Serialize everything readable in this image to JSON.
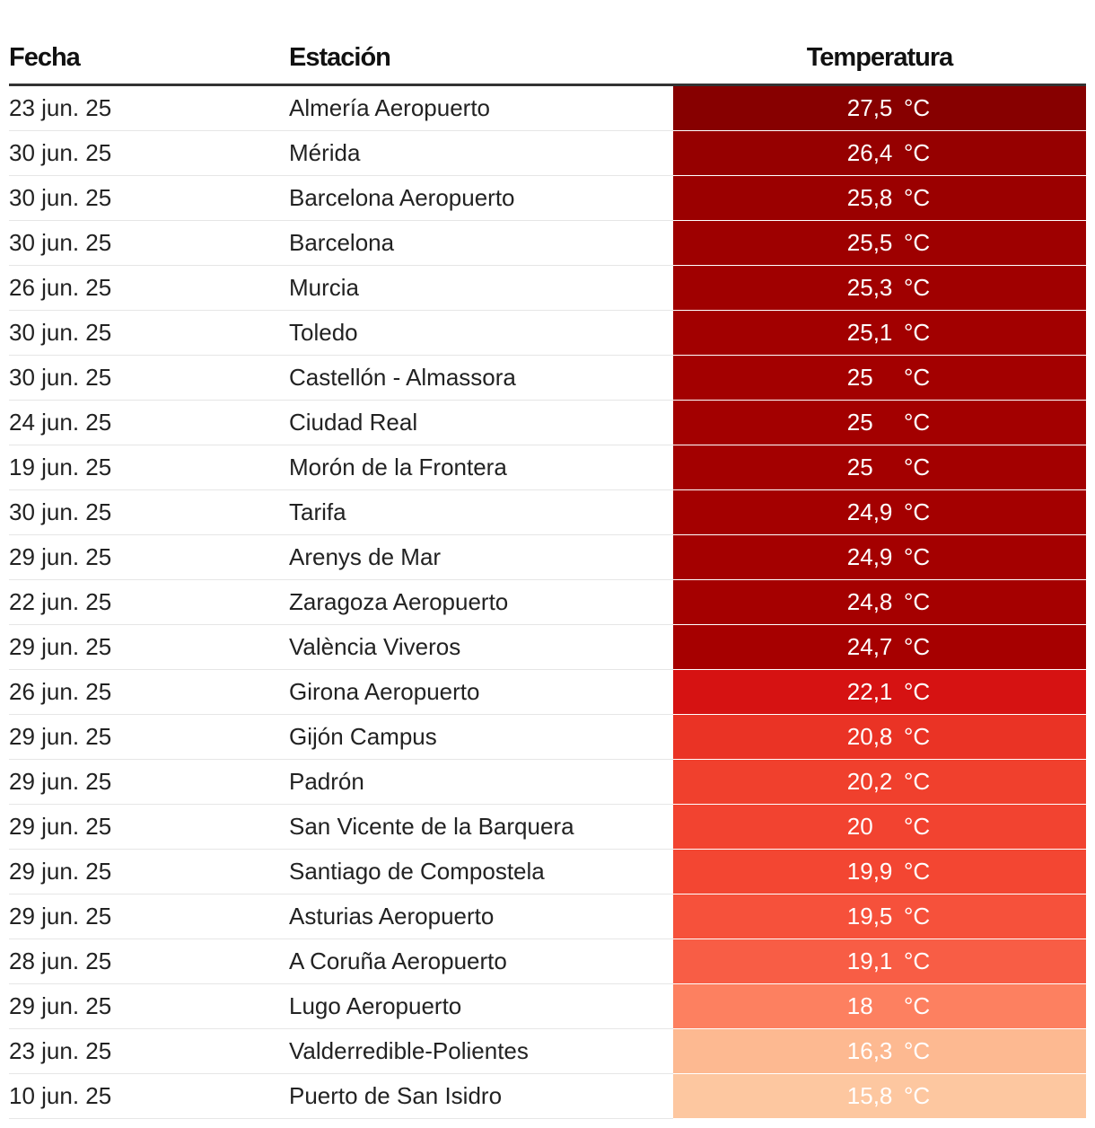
{
  "chart_data": {
    "type": "table",
    "columns": [
      "Fecha",
      "Estación",
      "Temperatura"
    ],
    "unit": "°C",
    "rows": [
      {
        "fecha": "23 jun. 25",
        "estacion": "Almería Aeropuerto",
        "temp": "27,5",
        "value": 27.5,
        "color": "#870000"
      },
      {
        "fecha": "30 jun. 25",
        "estacion": "Mérida",
        "temp": "26,4",
        "value": 26.4,
        "color": "#960000"
      },
      {
        "fecha": "30 jun. 25",
        "estacion": "Barcelona Aeropuerto",
        "temp": "25,8",
        "value": 25.8,
        "color": "#9b0000"
      },
      {
        "fecha": "30 jun. 25",
        "estacion": "Barcelona",
        "temp": "25,5",
        "value": 25.5,
        "color": "#9e0000"
      },
      {
        "fecha": "26 jun. 25",
        "estacion": "Murcia",
        "temp": "25,3",
        "value": 25.3,
        "color": "#a00000"
      },
      {
        "fecha": "30 jun. 25",
        "estacion": "Toledo",
        "temp": "25,1",
        "value": 25.1,
        "color": "#a20000"
      },
      {
        "fecha": "30 jun. 25",
        "estacion": "Castellón - Almassora",
        "temp": "25",
        "value": 25.0,
        "color": "#a30000"
      },
      {
        "fecha": "24 jun. 25",
        "estacion": "Ciudad Real",
        "temp": "25",
        "value": 25.0,
        "color": "#a30000"
      },
      {
        "fecha": "19 jun. 25",
        "estacion": "Morón de la Frontera",
        "temp": "25",
        "value": 25.0,
        "color": "#a30000"
      },
      {
        "fecha": "30 jun. 25",
        "estacion": "Tarifa",
        "temp": "24,9",
        "value": 24.9,
        "color": "#a40000"
      },
      {
        "fecha": "29 jun. 25",
        "estacion": "Arenys de Mar",
        "temp": "24,9",
        "value": 24.9,
        "color": "#a40000"
      },
      {
        "fecha": "22 jun. 25",
        "estacion": "Zaragoza Aeropuerto",
        "temp": "24,8",
        "value": 24.8,
        "color": "#a50000"
      },
      {
        "fecha": "29 jun. 25",
        "estacion": "València Viveros",
        "temp": "24,7",
        "value": 24.7,
        "color": "#a60000"
      },
      {
        "fecha": "26 jun. 25",
        "estacion": "Girona Aeropuerto",
        "temp": "22,1",
        "value": 22.1,
        "color": "#d61212"
      },
      {
        "fecha": "29 jun. 25",
        "estacion": "Gijón Campus",
        "temp": "20,8",
        "value": 20.8,
        "color": "#ea3325"
      },
      {
        "fecha": "29 jun. 25",
        "estacion": "Padrón",
        "temp": "20,2",
        "value": 20.2,
        "color": "#f0402d"
      },
      {
        "fecha": "29 jun. 25",
        "estacion": "San Vicente de la Barquera",
        "temp": "20",
        "value": 20.0,
        "color": "#f24330"
      },
      {
        "fecha": "29 jun. 25",
        "estacion": "Santiago de Compostela",
        "temp": "19,9",
        "value": 19.9,
        "color": "#f34632"
      },
      {
        "fecha": "29 jun. 25",
        "estacion": "Asturias Aeropuerto",
        "temp": "19,5",
        "value": 19.5,
        "color": "#f6513b"
      },
      {
        "fecha": "28 jun. 25",
        "estacion": "A Coruña Aeropuerto",
        "temp": "19,1",
        "value": 19.1,
        "color": "#f85d45"
      },
      {
        "fecha": "29 jun. 25",
        "estacion": "Lugo Aeropuerto",
        "temp": "18",
        "value": 18.0,
        "color": "#fd8060"
      },
      {
        "fecha": "23 jun. 25",
        "estacion": "Valderredible-Polientes",
        "temp": "16,3",
        "value": 16.3,
        "color": "#fdb991"
      },
      {
        "fecha": "10 jun. 25",
        "estacion": "Puerto de San Isidro",
        "temp": "15,8",
        "value": 15.8,
        "color": "#fdc7a0"
      }
    ]
  }
}
